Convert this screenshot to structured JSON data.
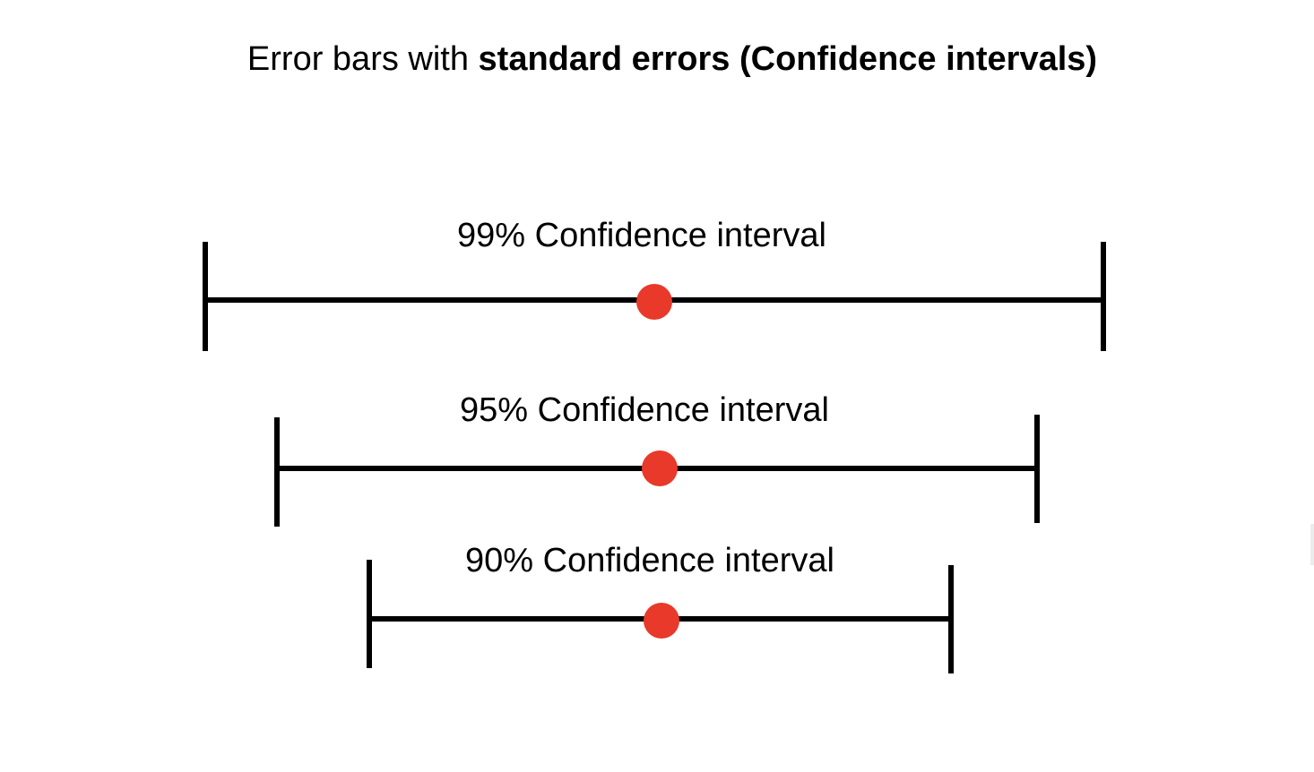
{
  "title": {
    "normal_text": "Error bars with ",
    "bold_text": "standard errors (Confidence intervals)"
  },
  "intervals": [
    {
      "label": "99% Confidence interval"
    },
    {
      "label": "95% Confidence interval"
    },
    {
      "label": "90% Confidence interval"
    }
  ],
  "colors": {
    "line": "#000000",
    "point": "#e8392a",
    "background": "#ffffff"
  }
}
